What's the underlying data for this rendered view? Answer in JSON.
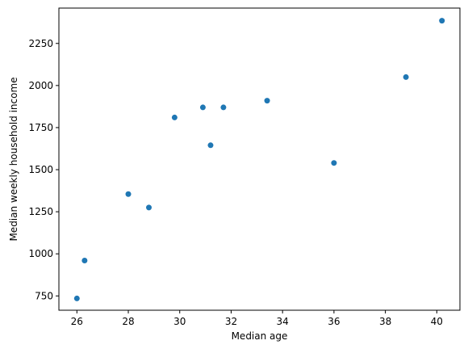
{
  "chart_data": {
    "type": "scatter",
    "title": "",
    "xlabel": "Median age",
    "ylabel": "Median weekly household income",
    "xlim": [
      25.3,
      40.9
    ],
    "ylim": [
      665,
      2460
    ],
    "xticks": [
      26,
      28,
      30,
      32,
      34,
      36,
      38,
      40
    ],
    "yticks": [
      750,
      1000,
      1250,
      1500,
      1750,
      2000,
      2250
    ],
    "grid": false,
    "legend": "none",
    "marker_color": "#1f77b4",
    "points": [
      {
        "x": 26.0,
        "y": 735
      },
      {
        "x": 26.3,
        "y": 960
      },
      {
        "x": 28.0,
        "y": 1355
      },
      {
        "x": 28.8,
        "y": 1275
      },
      {
        "x": 29.8,
        "y": 1810
      },
      {
        "x": 30.9,
        "y": 1870
      },
      {
        "x": 31.2,
        "y": 1645
      },
      {
        "x": 31.7,
        "y": 1870
      },
      {
        "x": 33.4,
        "y": 1910
      },
      {
        "x": 36.0,
        "y": 1540
      },
      {
        "x": 38.8,
        "y": 2050
      },
      {
        "x": 40.2,
        "y": 2385
      }
    ]
  }
}
